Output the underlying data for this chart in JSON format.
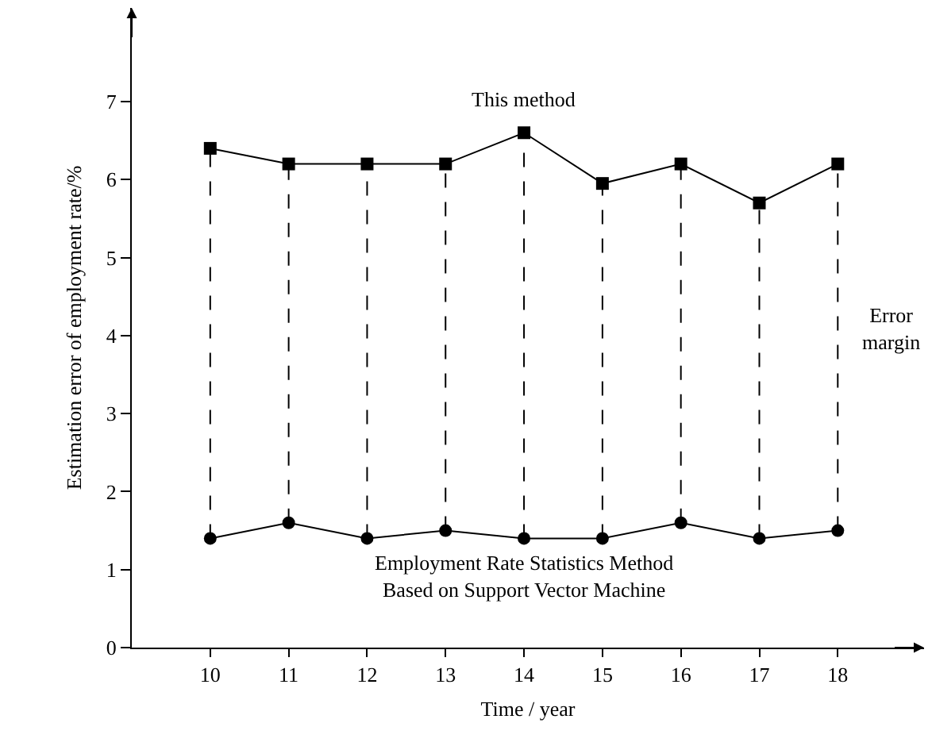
{
  "chart_data": {
    "type": "line",
    "xlabel": "Time / year",
    "ylabel": "Estimation error of employment rate/%",
    "x": [
      10,
      11,
      12,
      13,
      14,
      15,
      16,
      17,
      18
    ],
    "series": [
      {
        "name": "This method",
        "color": "#000000",
        "marker": "square",
        "values": [
          6.4,
          6.2,
          6.2,
          6.2,
          6.6,
          5.95,
          6.2,
          5.7,
          6.2
        ],
        "errors": [
          [
            1.4,
            6.4
          ],
          [
            1.6,
            6.2
          ],
          [
            1.4,
            6.2
          ],
          [
            1.5,
            6.2
          ],
          [
            1.4,
            6.6
          ],
          [
            1.4,
            5.95
          ],
          [
            1.6,
            6.2
          ],
          [
            1.4,
            5.7
          ],
          [
            1.5,
            6.2
          ]
        ]
      },
      {
        "name": "Employment Rate Statistics Method Based on Support Vector Machine",
        "color": "#000000",
        "marker": "circle",
        "values": [
          1.4,
          1.6,
          1.4,
          1.5,
          1.4,
          1.4,
          1.6,
          1.4,
          1.5
        ]
      }
    ],
    "xlim": [
      9,
      19.1
    ],
    "xticks": [
      10,
      11,
      12,
      13,
      14,
      15,
      16,
      17,
      18
    ],
    "ylim": [
      0,
      8.2
    ],
    "yticks": [
      0,
      1,
      2,
      3,
      4,
      5,
      6,
      7
    ],
    "annotations": [
      "Error margin"
    ],
    "grid": false,
    "legend": false,
    "line_style": "solid"
  }
}
